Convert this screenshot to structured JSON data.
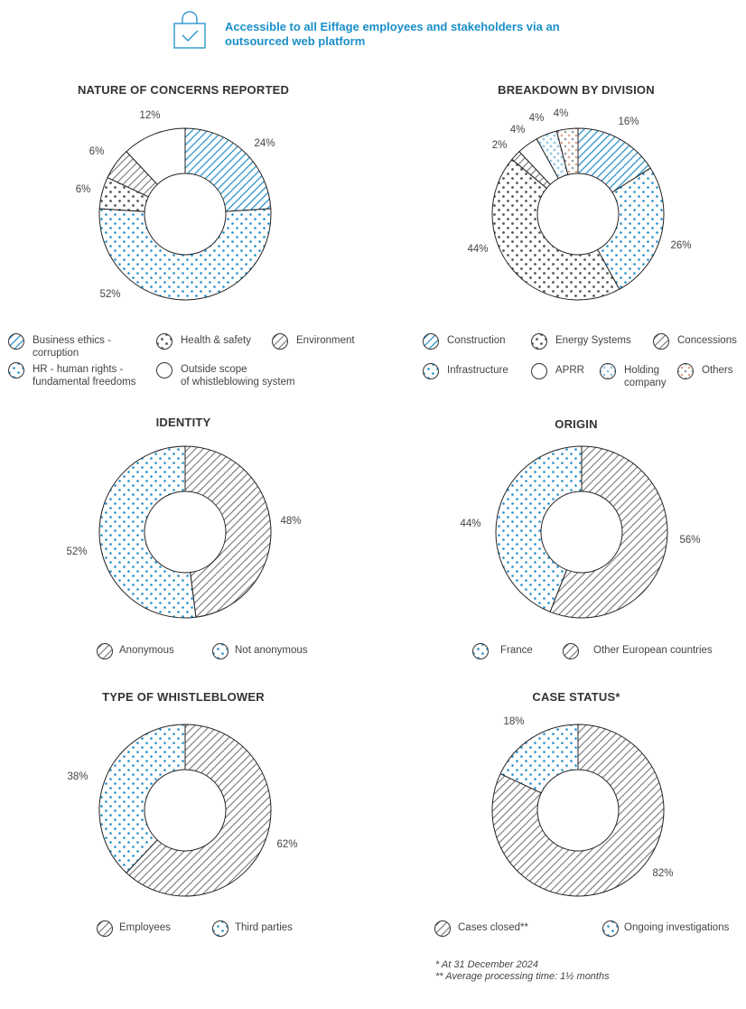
{
  "banner": {
    "text": "Accessible to all Eiffage employees and stakeholders via an outsourced web platform",
    "icon": "bag-check-icon"
  },
  "colors": {
    "blue": "#1e8ec9",
    "dark": "#444444",
    "gray": "#777777"
  },
  "chart_data": [
    {
      "type": "pie",
      "title": "NATURE OF CONCERNS REPORTED",
      "categories": [
        "Business ethics - corruption",
        "HR - human rights - fundamental freedoms",
        "Health & safety",
        "Environment",
        "Outside scope of whistleblowing system"
      ],
      "values": [
        24,
        52,
        6,
        6,
        12
      ],
      "patterns": [
        "stripe-blue",
        "dots-blue",
        "dots-dark",
        "stripe-dark",
        "blank"
      ],
      "labels": [
        "24%",
        "52%",
        "6%",
        "6%",
        "12%"
      ],
      "legend": [
        {
          "lines": [
            "Business ethics -",
            "corruption"
          ],
          "pattern": "stripe-blue"
        },
        {
          "lines": [
            "Health & safety"
          ],
          "pattern": "dots-dark"
        },
        {
          "lines": [
            "Environment"
          ],
          "pattern": "stripe-dark"
        },
        {
          "lines": [
            "HR - human rights -",
            "fundamental freedoms"
          ],
          "pattern": "dots-blue"
        },
        {
          "lines": [
            "Outside scope",
            "of whistleblowing system"
          ],
          "pattern": "blank"
        }
      ]
    },
    {
      "type": "pie",
      "title": "BREAKDOWN BY DIVISION",
      "categories": [
        "Construction",
        "Infrastructure",
        "Energy Systems",
        "Concessions",
        "APRR",
        "Holding company",
        "Others"
      ],
      "values": [
        16,
        26,
        44,
        2,
        4,
        4,
        4
      ],
      "patterns": [
        "stripe-blue",
        "dots-blue",
        "dots-dark",
        "stripe-dark",
        "blank",
        "dots-light",
        "dots-mixed"
      ],
      "labels": [
        "16%",
        "26%",
        "44%",
        "2%",
        "4%",
        "4%",
        "4%"
      ],
      "legend": [
        {
          "lines": [
            "Construction"
          ],
          "pattern": "stripe-blue"
        },
        {
          "lines": [
            "Energy Systems"
          ],
          "pattern": "dots-dark"
        },
        {
          "lines": [
            "Concessions"
          ],
          "pattern": "stripe-dark"
        },
        {
          "lines": [
            "Infrastructure"
          ],
          "pattern": "dots-blue"
        },
        {
          "lines": [
            "APRR"
          ],
          "pattern": "blank"
        },
        {
          "lines": [
            "Holding",
            "company"
          ],
          "pattern": "dots-light"
        },
        {
          "lines": [
            "Others"
          ],
          "pattern": "dots-mixed"
        }
      ]
    },
    {
      "type": "pie",
      "title": "IDENTITY",
      "categories": [
        "Anonymous",
        "Not anonymous"
      ],
      "values": [
        48,
        52
      ],
      "patterns": [
        "stripe-dark",
        "dots-blue"
      ],
      "labels": [
        "48%",
        "52%"
      ],
      "legend": [
        {
          "lines": [
            "Anonymous"
          ],
          "pattern": "stripe-dark"
        },
        {
          "lines": [
            "Not anonymous"
          ],
          "pattern": "dots-blue"
        }
      ]
    },
    {
      "type": "pie",
      "title": "ORIGIN",
      "categories": [
        "Other European countries",
        "France"
      ],
      "values": [
        56,
        44
      ],
      "patterns": [
        "stripe-dark",
        "dots-blue"
      ],
      "labels": [
        "56%",
        "44%"
      ],
      "legend": [
        {
          "lines": [
            "France"
          ],
          "pattern": "dots-blue"
        },
        {
          "lines": [
            "Other European countries"
          ],
          "pattern": "stripe-dark"
        }
      ]
    },
    {
      "type": "pie",
      "title": "TYPE OF WHISTLEBLOWER",
      "categories": [
        "Employees",
        "Third parties"
      ],
      "values": [
        62,
        38
      ],
      "patterns": [
        "stripe-dark",
        "dots-blue"
      ],
      "labels": [
        "62%",
        "38%"
      ],
      "legend": [
        {
          "lines": [
            "Employees"
          ],
          "pattern": "stripe-dark"
        },
        {
          "lines": [
            "Third parties"
          ],
          "pattern": "dots-blue"
        }
      ]
    },
    {
      "type": "pie",
      "title": "CASE STATUS*",
      "categories": [
        "Cases closed**",
        "Ongoing investigations"
      ],
      "values": [
        82,
        18
      ],
      "patterns": [
        "stripe-dark",
        "dots-blue"
      ],
      "labels": [
        "82%",
        "18%"
      ],
      "legend": [
        {
          "lines": [
            "Cases closed**"
          ],
          "pattern": "stripe-dark"
        },
        {
          "lines": [
            "Ongoing investigations"
          ],
          "pattern": "dots-blue"
        }
      ]
    }
  ],
  "footnotes": [
    "* At 31 December 2024",
    "** Average processing time: 1½ months"
  ]
}
